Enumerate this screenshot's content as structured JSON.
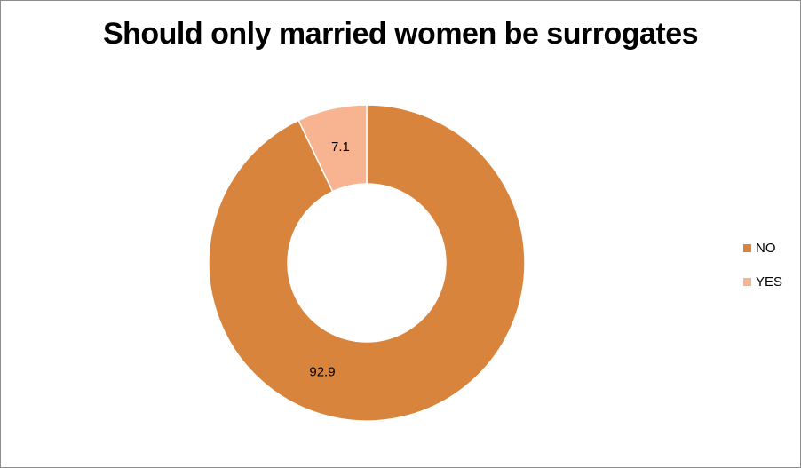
{
  "chart_data": {
    "type": "pie",
    "variant": "donut",
    "title": "Should only married women be surrogates",
    "categories": [
      "NO",
      "YES"
    ],
    "values": [
      92.9,
      7.1
    ],
    "colors": [
      "#D9843D",
      "#F8B491"
    ],
    "data_labels": [
      "92.9",
      "7.1"
    ],
    "legend": {
      "placement": "right",
      "entries": [
        "NO",
        "YES"
      ]
    },
    "start_angle_deg": 0,
    "direction": "counterclockwise"
  }
}
